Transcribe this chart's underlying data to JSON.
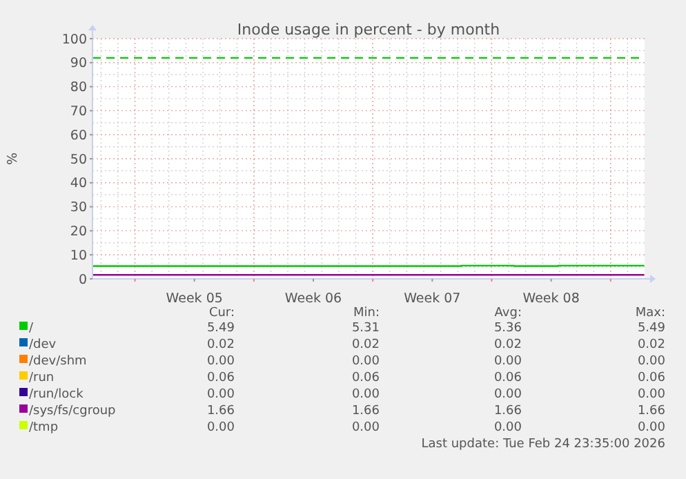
{
  "chart_data": {
    "type": "step",
    "title": "Inode usage in percent - by month",
    "ylabel": "%",
    "xlim": [
      "2026-01-23T12:00",
      "2026-02-25T00:00"
    ],
    "xticks": [
      {
        "value": "2026-01-26T00:00",
        "label": null
      },
      {
        "value": "2026-01-29T12:00",
        "label": "Week 05"
      },
      {
        "value": "2026-02-02T00:00",
        "label": null
      },
      {
        "value": "2026-02-05T12:00",
        "label": "Week 06"
      },
      {
        "value": "2026-02-09T00:00",
        "label": null
      },
      {
        "value": "2026-02-12T12:00",
        "label": "Week 07"
      },
      {
        "value": "2026-02-16T00:00",
        "label": null
      },
      {
        "value": "2026-02-19T12:00",
        "label": "Week 08"
      },
      {
        "value": "2026-02-23T00:00",
        "label": null
      }
    ],
    "ylim": [
      0,
      100
    ],
    "yticks": [
      0,
      10,
      20,
      30,
      40,
      50,
      60,
      70,
      80,
      90,
      100
    ],
    "grid": true,
    "legend": "bottom",
    "series": [
      {
        "name": "/",
        "color": "#00cc00",
        "x": [
          "2026-01-23T12:00",
          "2026-02-14T05:00",
          "2026-02-17T07:00",
          "2026-02-19T22:00",
          "2026-02-24T23:35"
        ],
        "values": [
          5.31,
          5.49,
          5.31,
          5.49,
          5.49
        ]
      },
      {
        "name": "/dev",
        "color": "#0066b3",
        "values": [
          null,
          null
        ]
      },
      {
        "name": "/dev/shm",
        "color": "#ff8000",
        "values": [
          null,
          null
        ]
      },
      {
        "name": "/run",
        "color": "#ffcc00",
        "values": [
          null,
          null
        ]
      },
      {
        "name": "/run/lock",
        "color": "#330099",
        "values": [
          null,
          null
        ]
      },
      {
        "name": "/sys/fs/cgroup",
        "color": "#990099",
        "x": [
          "2026-01-23T12:00",
          "2026-02-24T23:35"
        ],
        "values": [
          1.66,
          1.66
        ]
      },
      {
        "name": "/tmp",
        "color": "#ccff00",
        "values": [
          null,
          null
        ]
      }
    ],
    "ref_lines": [
      {
        "axis": "y",
        "value": 92,
        "label": null,
        "color": "#00cc00",
        "line_style": "dashed"
      }
    ],
    "annotations": [
      "Cur:",
      "Min:",
      "Avg:",
      "Max:",
      "5.49",
      "5.31",
      "5.36",
      "5.49",
      "0.02",
      "0.02",
      "0.02",
      "0.02",
      "0.00",
      "0.00",
      "0.00",
      "0.00",
      "0.06",
      "0.06",
      "0.06",
      "0.06",
      "0.00",
      "0.00",
      "0.00",
      "0.00",
      "1.66",
      "1.66",
      "1.66",
      "1.66",
      "0.00",
      "0.00",
      "0.00",
      "0.00",
      "Last update: Tue Feb 24 23:35:00 2026"
    ]
  }
}
